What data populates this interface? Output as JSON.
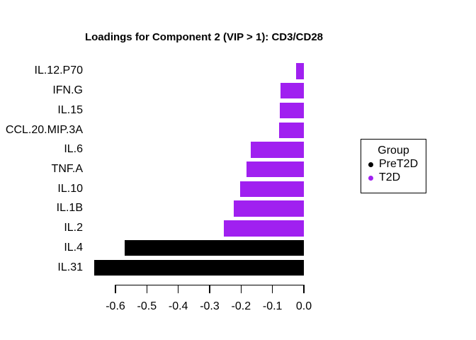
{
  "chart_data": {
    "type": "bar",
    "orientation": "horizontal",
    "title": "Loadings for Component 2 (VIP > 1): CD3/CD28",
    "categories": [
      "IL.12.P70",
      "IFN.G",
      "IL.15",
      "CCL.20.MIP.3A",
      "IL.6",
      "TNF.A",
      "IL.10",
      "IL.1B",
      "IL.2",
      "IL.4",
      "IL.31"
    ],
    "values": [
      -0.025,
      -0.075,
      -0.077,
      -0.08,
      -0.17,
      -0.183,
      -0.202,
      -0.223,
      -0.256,
      -0.571,
      -0.667
    ],
    "groups": [
      "T2D",
      "T2D",
      "T2D",
      "T2D",
      "T2D",
      "T2D",
      "T2D",
      "T2D",
      "T2D",
      "PreT2D",
      "PreT2D"
    ],
    "xlabel": "",
    "ylabel": "",
    "xlim": [
      -0.6,
      0.0
    ],
    "x_ticks": [
      "-0.6",
      "-0.5",
      "-0.4",
      "-0.3",
      "-0.2",
      "-0.1",
      "0.0"
    ],
    "x_tick_values": [
      -0.6,
      -0.5,
      -0.4,
      -0.3,
      -0.2,
      -0.1,
      0.0
    ],
    "grid": false,
    "colors": {
      "PreT2D": "#000000",
      "T2D": "#A020F0"
    },
    "legend": {
      "title": "Group",
      "position": "right",
      "entries": [
        {
          "label": "PreT2D",
          "color": "#000000",
          "marker": "circle-icon"
        },
        {
          "label": "T2D",
          "color": "#A020F0",
          "marker": "circle-icon"
        }
      ]
    }
  }
}
